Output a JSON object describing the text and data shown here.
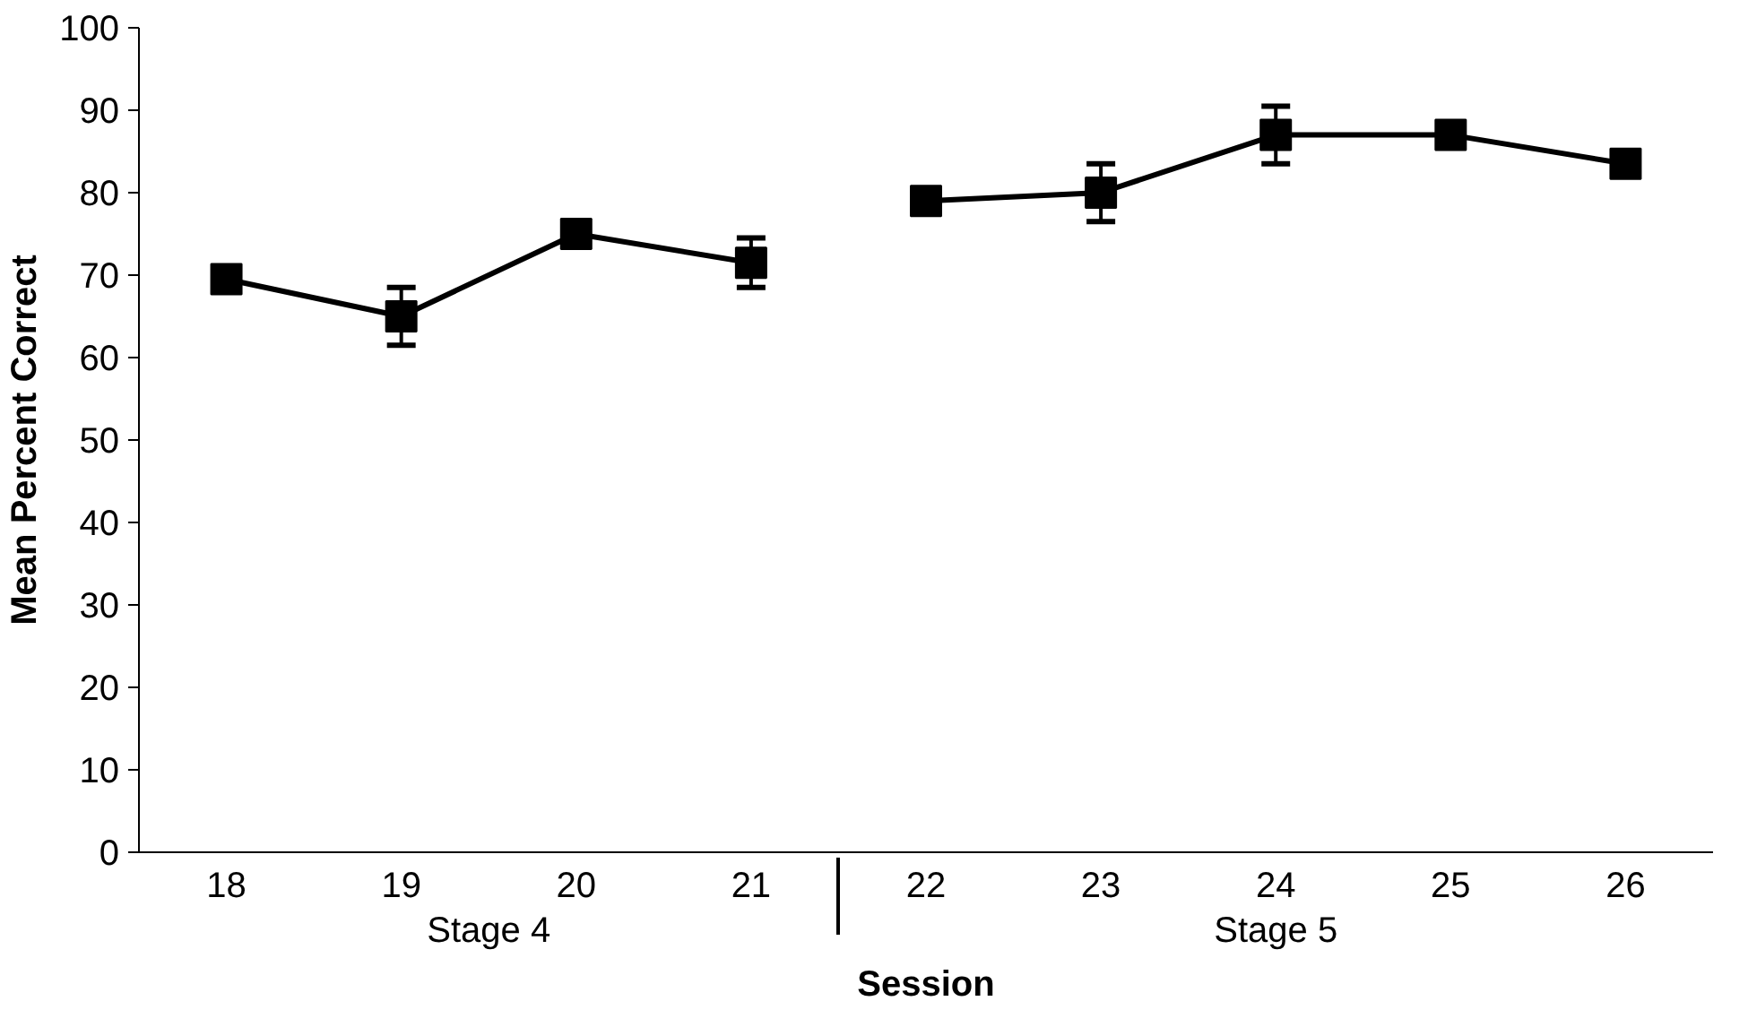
{
  "chart_data": {
    "type": "line",
    "xlabel": "Session",
    "ylabel": "Mean Percent Correct",
    "categories": [
      "18",
      "19",
      "20",
      "21",
      "22",
      "23",
      "24",
      "25",
      "26"
    ],
    "series": [
      {
        "color": "#000000",
        "values": [
          69.5,
          65,
          75,
          71.5,
          null,
          null,
          null,
          null,
          null
        ],
        "errors": [
          1.5,
          3.5,
          1.5,
          3,
          null,
          null,
          null,
          null,
          null
        ]
      },
      {
        "color": "#000000",
        "values": [
          null,
          null,
          null,
          null,
          79,
          80,
          87,
          87,
          83.5
        ],
        "errors": [
          null,
          null,
          null,
          null,
          1.5,
          3.5,
          3.5,
          1.5,
          1.5
        ]
      }
    ],
    "annotations": [
      "Stage 4",
      "Stage 5"
    ],
    "ylim": [
      0,
      100
    ],
    "yticks": [
      0,
      10,
      20,
      30,
      40,
      50,
      60,
      70,
      80,
      90,
      100
    ],
    "marker": "square",
    "line_style": "solid",
    "grid": false
  }
}
